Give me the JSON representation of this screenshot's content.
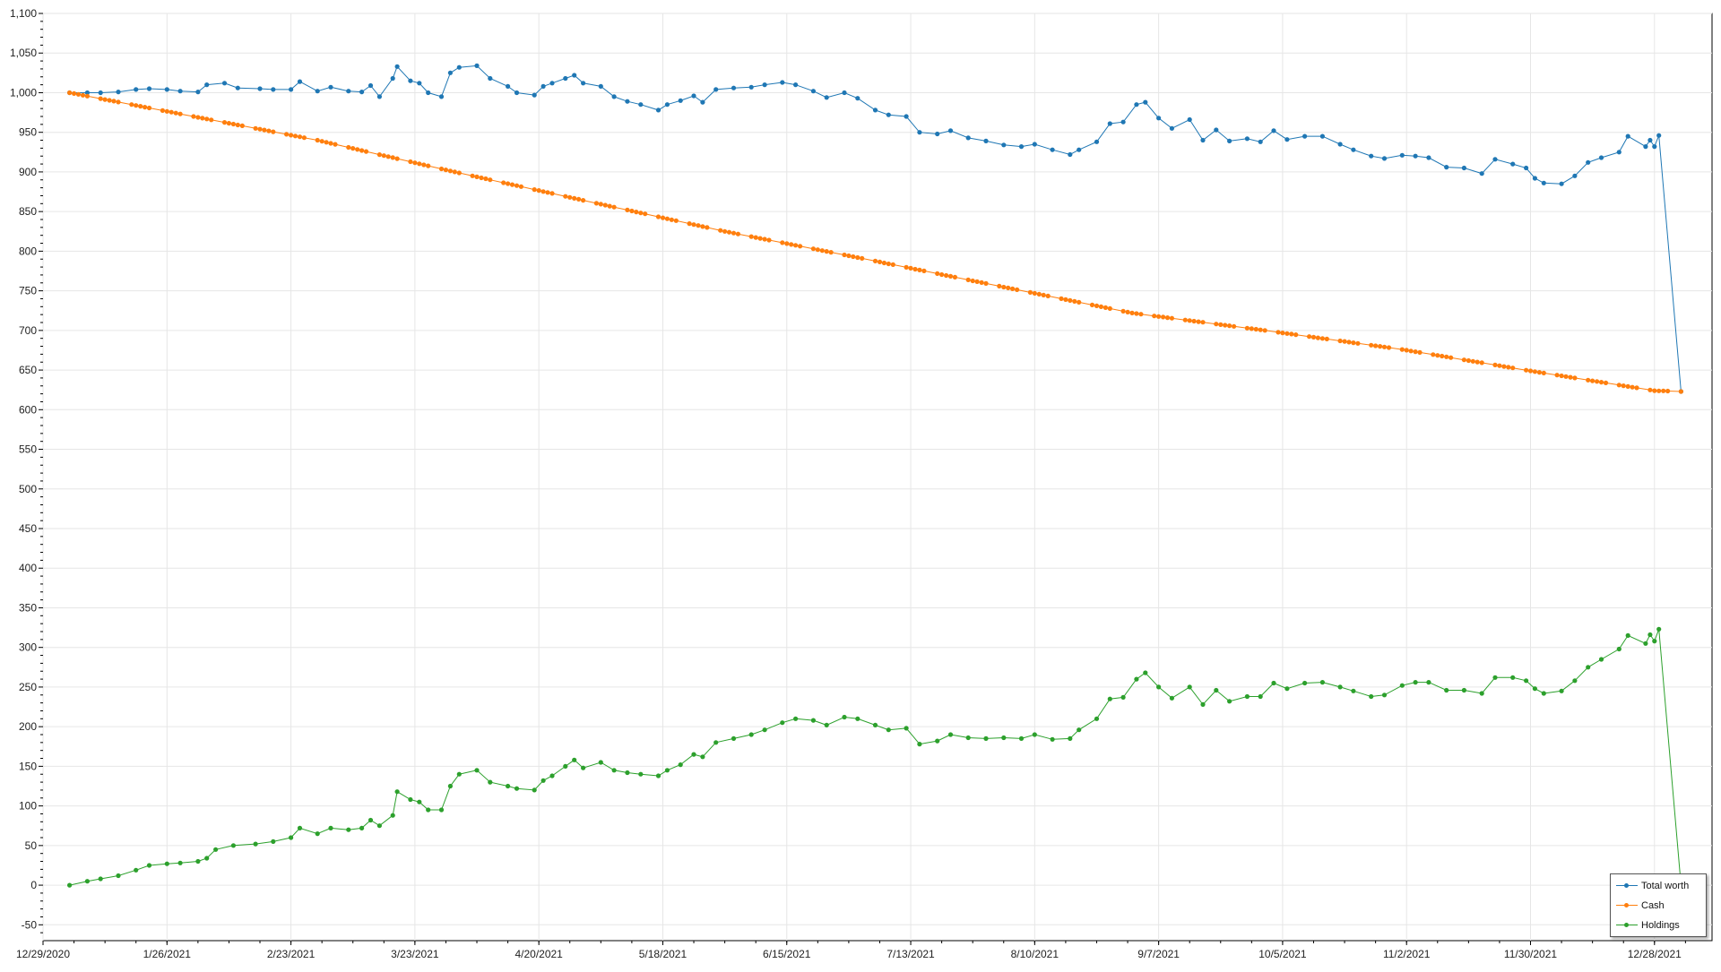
{
  "chart_data": {
    "type": "line",
    "x_type": "date",
    "xlim": [
      "2020-12-29",
      "2022-01-10"
    ],
    "ylim": [
      -70,
      1100
    ],
    "y_ticks": [
      -50,
      0,
      50,
      100,
      150,
      200,
      250,
      300,
      350,
      400,
      450,
      500,
      550,
      600,
      650,
      700,
      750,
      800,
      850,
      900,
      950,
      1000,
      1050,
      1100
    ],
    "y_tick_labels": [
      "-50",
      "0",
      "50",
      "100",
      "150",
      "200",
      "250",
      "300",
      "350",
      "400",
      "450",
      "500",
      "550",
      "600",
      "650",
      "700",
      "750",
      "800",
      "850",
      "900",
      "950",
      "1,000",
      "1,050",
      "1,100"
    ],
    "x_ticks": [
      "2020-12-29",
      "2021-01-26",
      "2021-02-23",
      "2021-03-23",
      "2021-04-20",
      "2021-05-18",
      "2021-06-15",
      "2021-07-13",
      "2021-08-10",
      "2021-09-07",
      "2021-10-05",
      "2021-11-02",
      "2021-11-30",
      "2021-12-28"
    ],
    "x_tick_labels": [
      "12/29/2020",
      "1/26/2021",
      "2/23/2021",
      "3/23/2021",
      "4/20/2021",
      "5/18/2021",
      "6/15/2021",
      "7/13/2021",
      "8/10/2021",
      "9/7/2021",
      "10/5/2021",
      "11/2/2021",
      "11/30/2021",
      "12/28/2021"
    ],
    "grid": true,
    "legend_position": "bottom-right",
    "series": [
      {
        "name": "Total worth",
        "color": "#1f77b4",
        "points": [
          [
            "2021-01-04",
            1000
          ],
          [
            "2021-01-08",
            1000
          ],
          [
            "2021-01-11",
            1000
          ],
          [
            "2021-01-15",
            1001
          ],
          [
            "2021-01-19",
            1004
          ],
          [
            "2021-01-22",
            1005
          ],
          [
            "2021-01-26",
            1004
          ],
          [
            "2021-01-29",
            1002
          ],
          [
            "2021-02-02",
            1001
          ],
          [
            "2021-02-04",
            1010
          ],
          [
            "2021-02-08",
            1012
          ],
          [
            "2021-02-11",
            1006
          ],
          [
            "2021-02-16",
            1005
          ],
          [
            "2021-02-19",
            1004
          ],
          [
            "2021-02-23",
            1004
          ],
          [
            "2021-02-25",
            1014
          ],
          [
            "2021-03-01",
            1002
          ],
          [
            "2021-03-04",
            1007
          ],
          [
            "2021-03-08",
            1002
          ],
          [
            "2021-03-11",
            1001
          ],
          [
            "2021-03-13",
            1009
          ],
          [
            "2021-03-15",
            995
          ],
          [
            "2021-03-18",
            1018
          ],
          [
            "2021-03-19",
            1033
          ],
          [
            "2021-03-22",
            1015
          ],
          [
            "2021-03-24",
            1012
          ],
          [
            "2021-03-26",
            1000
          ],
          [
            "2021-03-29",
            995
          ],
          [
            "2021-03-31",
            1025
          ],
          [
            "2021-04-02",
            1032
          ],
          [
            "2021-04-06",
            1034
          ],
          [
            "2021-04-09",
            1018
          ],
          [
            "2021-04-13",
            1008
          ],
          [
            "2021-04-15",
            1000
          ],
          [
            "2021-04-19",
            997
          ],
          [
            "2021-04-21",
            1008
          ],
          [
            "2021-04-23",
            1012
          ],
          [
            "2021-04-26",
            1018
          ],
          [
            "2021-04-28",
            1022
          ],
          [
            "2021-04-30",
            1012
          ],
          [
            "2021-05-04",
            1008
          ],
          [
            "2021-05-07",
            995
          ],
          [
            "2021-05-10",
            989
          ],
          [
            "2021-05-13",
            985
          ],
          [
            "2021-05-17",
            978
          ],
          [
            "2021-05-19",
            985
          ],
          [
            "2021-05-22",
            990
          ],
          [
            "2021-05-25",
            996
          ],
          [
            "2021-05-27",
            988
          ],
          [
            "2021-05-30",
            1004
          ],
          [
            "2021-06-03",
            1006
          ],
          [
            "2021-06-07",
            1007
          ],
          [
            "2021-06-10",
            1010
          ],
          [
            "2021-06-14",
            1013
          ],
          [
            "2021-06-17",
            1010
          ],
          [
            "2021-06-21",
            1002
          ],
          [
            "2021-06-24",
            994
          ],
          [
            "2021-06-28",
            1000
          ],
          [
            "2021-07-01",
            993
          ],
          [
            "2021-07-05",
            978
          ],
          [
            "2021-07-08",
            972
          ],
          [
            "2021-07-12",
            970
          ],
          [
            "2021-07-15",
            950
          ],
          [
            "2021-07-19",
            948
          ],
          [
            "2021-07-22",
            952
          ],
          [
            "2021-07-26",
            943
          ],
          [
            "2021-07-30",
            939
          ],
          [
            "2021-08-03",
            934
          ],
          [
            "2021-08-07",
            932
          ],
          [
            "2021-08-10",
            935
          ],
          [
            "2021-08-14",
            928
          ],
          [
            "2021-08-18",
            922
          ],
          [
            "2021-08-20",
            928
          ],
          [
            "2021-08-24",
            938
          ],
          [
            "2021-08-27",
            961
          ],
          [
            "2021-08-30",
            963
          ],
          [
            "2021-09-02",
            985
          ],
          [
            "2021-09-04",
            988
          ],
          [
            "2021-09-07",
            968
          ],
          [
            "2021-09-10",
            955
          ],
          [
            "2021-09-14",
            966
          ],
          [
            "2021-09-17",
            940
          ],
          [
            "2021-09-20",
            953
          ],
          [
            "2021-09-23",
            939
          ],
          [
            "2021-09-27",
            942
          ],
          [
            "2021-09-30",
            938
          ],
          [
            "2021-10-03",
            952
          ],
          [
            "2021-10-06",
            941
          ],
          [
            "2021-10-10",
            945
          ],
          [
            "2021-10-14",
            945
          ],
          [
            "2021-10-18",
            935
          ],
          [
            "2021-10-21",
            928
          ],
          [
            "2021-10-25",
            920
          ],
          [
            "2021-10-28",
            917
          ],
          [
            "2021-11-01",
            921
          ],
          [
            "2021-11-04",
            920
          ],
          [
            "2021-11-07",
            918
          ],
          [
            "2021-11-11",
            906
          ],
          [
            "2021-11-15",
            905
          ],
          [
            "2021-11-19",
            898
          ],
          [
            "2021-11-22",
            916
          ],
          [
            "2021-11-26",
            910
          ],
          [
            "2021-11-29",
            905
          ],
          [
            "2021-12-01",
            892
          ],
          [
            "2021-12-03",
            886
          ],
          [
            "2021-12-07",
            885
          ],
          [
            "2021-12-10",
            895
          ],
          [
            "2021-12-13",
            912
          ],
          [
            "2021-12-16",
            918
          ],
          [
            "2021-12-20",
            925
          ],
          [
            "2021-12-22",
            945
          ],
          [
            "2021-12-26",
            932
          ],
          [
            "2021-12-27",
            940
          ],
          [
            "2021-12-28",
            932
          ],
          [
            "2021-12-29",
            946
          ],
          [
            "2022-01-03",
            623
          ]
        ]
      },
      {
        "name": "Cash",
        "color": "#ff7f0e",
        "points": [
          [
            "2021-01-04",
            1000
          ],
          [
            "2021-02-01",
            970
          ],
          [
            "2021-03-01",
            940
          ],
          [
            "2021-04-01",
            900
          ],
          [
            "2021-05-01",
            863
          ],
          [
            "2021-06-01",
            825
          ],
          [
            "2021-07-01",
            792
          ],
          [
            "2021-08-01",
            757
          ],
          [
            "2021-09-01",
            722
          ],
          [
            "2021-10-01",
            700
          ],
          [
            "2021-11-01",
            676
          ],
          [
            "2021-12-01",
            648
          ],
          [
            "2021-12-28",
            624
          ],
          [
            "2022-01-03",
            623
          ]
        ],
        "daily": true
      },
      {
        "name": "Holdings",
        "color": "#2ca02c",
        "points": [
          [
            "2021-01-04",
            0
          ],
          [
            "2021-01-08",
            5
          ],
          [
            "2021-01-11",
            8
          ],
          [
            "2021-01-15",
            12
          ],
          [
            "2021-01-19",
            19
          ],
          [
            "2021-01-22",
            25
          ],
          [
            "2021-01-26",
            27
          ],
          [
            "2021-01-29",
            28
          ],
          [
            "2021-02-02",
            30
          ],
          [
            "2021-02-04",
            34
          ],
          [
            "2021-02-06",
            45
          ],
          [
            "2021-02-10",
            50
          ],
          [
            "2021-02-15",
            52
          ],
          [
            "2021-02-19",
            55
          ],
          [
            "2021-02-23",
            60
          ],
          [
            "2021-02-25",
            72
          ],
          [
            "2021-03-01",
            65
          ],
          [
            "2021-03-04",
            72
          ],
          [
            "2021-03-08",
            70
          ],
          [
            "2021-03-11",
            72
          ],
          [
            "2021-03-13",
            82
          ],
          [
            "2021-03-15",
            75
          ],
          [
            "2021-03-18",
            88
          ],
          [
            "2021-03-19",
            118
          ],
          [
            "2021-03-22",
            108
          ],
          [
            "2021-03-24",
            105
          ],
          [
            "2021-03-26",
            95
          ],
          [
            "2021-03-29",
            95
          ],
          [
            "2021-03-31",
            125
          ],
          [
            "2021-04-02",
            140
          ],
          [
            "2021-04-06",
            145
          ],
          [
            "2021-04-09",
            130
          ],
          [
            "2021-04-13",
            125
          ],
          [
            "2021-04-15",
            122
          ],
          [
            "2021-04-19",
            120
          ],
          [
            "2021-04-21",
            132
          ],
          [
            "2021-04-23",
            138
          ],
          [
            "2021-04-26",
            150
          ],
          [
            "2021-04-28",
            158
          ],
          [
            "2021-04-30",
            148
          ],
          [
            "2021-05-04",
            155
          ],
          [
            "2021-05-07",
            145
          ],
          [
            "2021-05-10",
            142
          ],
          [
            "2021-05-13",
            140
          ],
          [
            "2021-05-17",
            138
          ],
          [
            "2021-05-19",
            145
          ],
          [
            "2021-05-22",
            152
          ],
          [
            "2021-05-25",
            165
          ],
          [
            "2021-05-27",
            162
          ],
          [
            "2021-05-30",
            180
          ],
          [
            "2021-06-03",
            185
          ],
          [
            "2021-06-07",
            190
          ],
          [
            "2021-06-10",
            196
          ],
          [
            "2021-06-14",
            205
          ],
          [
            "2021-06-17",
            210
          ],
          [
            "2021-06-21",
            208
          ],
          [
            "2021-06-24",
            202
          ],
          [
            "2021-06-28",
            212
          ],
          [
            "2021-07-01",
            210
          ],
          [
            "2021-07-05",
            202
          ],
          [
            "2021-07-08",
            196
          ],
          [
            "2021-07-12",
            198
          ],
          [
            "2021-07-15",
            178
          ],
          [
            "2021-07-19",
            182
          ],
          [
            "2021-07-22",
            190
          ],
          [
            "2021-07-26",
            186
          ],
          [
            "2021-07-30",
            185
          ],
          [
            "2021-08-03",
            186
          ],
          [
            "2021-08-07",
            185
          ],
          [
            "2021-08-10",
            190
          ],
          [
            "2021-08-14",
            184
          ],
          [
            "2021-08-18",
            185
          ],
          [
            "2021-08-20",
            196
          ],
          [
            "2021-08-24",
            210
          ],
          [
            "2021-08-27",
            235
          ],
          [
            "2021-08-30",
            237
          ],
          [
            "2021-09-02",
            260
          ],
          [
            "2021-09-04",
            268
          ],
          [
            "2021-09-07",
            250
          ],
          [
            "2021-09-10",
            236
          ],
          [
            "2021-09-14",
            250
          ],
          [
            "2021-09-17",
            228
          ],
          [
            "2021-09-20",
            246
          ],
          [
            "2021-09-23",
            232
          ],
          [
            "2021-09-27",
            238
          ],
          [
            "2021-09-30",
            238
          ],
          [
            "2021-10-03",
            255
          ],
          [
            "2021-10-06",
            248
          ],
          [
            "2021-10-10",
            255
          ],
          [
            "2021-10-14",
            256
          ],
          [
            "2021-10-18",
            250
          ],
          [
            "2021-10-21",
            245
          ],
          [
            "2021-10-25",
            238
          ],
          [
            "2021-10-28",
            240
          ],
          [
            "2021-11-01",
            252
          ],
          [
            "2021-11-04",
            256
          ],
          [
            "2021-11-07",
            256
          ],
          [
            "2021-11-11",
            246
          ],
          [
            "2021-11-15",
            246
          ],
          [
            "2021-11-19",
            242
          ],
          [
            "2021-11-22",
            262
          ],
          [
            "2021-11-26",
            262
          ],
          [
            "2021-11-29",
            258
          ],
          [
            "2021-12-01",
            248
          ],
          [
            "2021-12-03",
            242
          ],
          [
            "2021-12-07",
            245
          ],
          [
            "2021-12-10",
            258
          ],
          [
            "2021-12-13",
            275
          ],
          [
            "2021-12-16",
            285
          ],
          [
            "2021-12-20",
            298
          ],
          [
            "2021-12-22",
            315
          ],
          [
            "2021-12-26",
            305
          ],
          [
            "2021-12-27",
            316
          ],
          [
            "2021-12-28",
            308
          ],
          [
            "2021-12-29",
            323
          ],
          [
            "2022-01-03",
            0
          ]
        ]
      }
    ]
  }
}
